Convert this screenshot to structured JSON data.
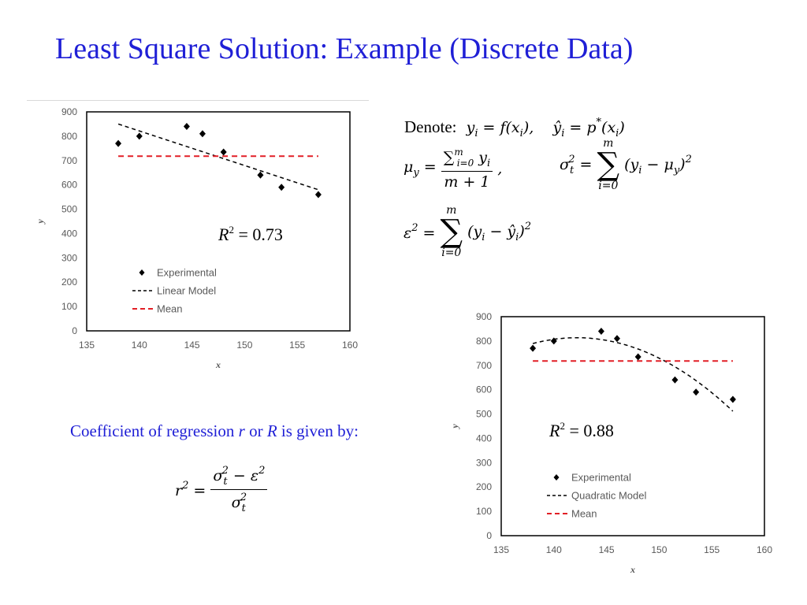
{
  "slide": {
    "title": "Least Square Solution: Example (Discrete Data)"
  },
  "colors": {
    "title": "#1f1fd6",
    "mean_line": "#e21f26",
    "model_line": "#000000"
  },
  "chart_data": [
    {
      "type": "scatter",
      "x": [
        138,
        140,
        144.5,
        146,
        148,
        151.5,
        153.5,
        157
      ],
      "series": [
        {
          "name": "Experimental",
          "style": "diamond-markers",
          "values": [
            770,
            800,
            840,
            810,
            735,
            640,
            590,
            560
          ]
        },
        {
          "name": "Linear Model",
          "style": "black-dashed",
          "points": [
            [
              138,
              850
            ],
            [
              157,
              580
            ]
          ]
        },
        {
          "name": "Mean",
          "style": "red-dashed",
          "points": [
            [
              138,
              718
            ],
            [
              157,
              718
            ]
          ]
        }
      ],
      "xlabel": "x",
      "ylabel": "y",
      "xlim": [
        135,
        160
      ],
      "ylim": [
        0,
        900
      ],
      "xticks": [
        "135",
        "140",
        "145",
        "150",
        "155",
        "160"
      ],
      "yticks": [
        "0",
        "100",
        "200",
        "300",
        "400",
        "500",
        "600",
        "700",
        "800",
        "900"
      ],
      "grid": false,
      "legend": "bottom-left",
      "annotation": {
        "prefix": "R",
        "exp": "2",
        "suffix": " = 0.73"
      }
    },
    {
      "type": "scatter",
      "x": [
        138,
        140,
        144.5,
        146,
        148,
        151.5,
        153.5,
        157
      ],
      "series": [
        {
          "name": "Experimental",
          "style": "diamond-markers",
          "values": [
            770,
            800,
            840,
            810,
            735,
            640,
            590,
            560
          ]
        },
        {
          "name": "Quadratic Model",
          "style": "black-dashed-curve",
          "coefficients": [
            -1.375,
            391,
            -26983
          ],
          "domain": [
            138,
            157
          ]
        },
        {
          "name": "Mean",
          "style": "red-dashed",
          "points": [
            [
              138,
              718
            ],
            [
              157,
              718
            ]
          ]
        }
      ],
      "xlabel": "x",
      "ylabel": "y",
      "xlim": [
        135,
        160
      ],
      "ylim": [
        0,
        900
      ],
      "xticks": [
        "135",
        "140",
        "145",
        "150",
        "155",
        "160"
      ],
      "yticks": [
        "0",
        "100",
        "200",
        "300",
        "400",
        "500",
        "600",
        "700",
        "800",
        "900"
      ],
      "grid": false,
      "legend": "bottom-left",
      "annotation": {
        "prefix": "R",
        "exp": "2",
        "suffix": " = 0.88"
      }
    }
  ],
  "formulas": {
    "denote_label": "Denote:",
    "def_y": "y",
    "def_y_sub": "i",
    "def_y_rhs": " = f(x",
    "def_y_rhs_sub": "i",
    "def_y_close": "),",
    "def_yhat": "ŷ",
    "def_yhat_sub": "i",
    "def_yhat_rhs": " = p",
    "def_yhat_star": "*",
    "def_yhat_rhs2": "(x",
    "def_yhat_rhs2_sub": "i",
    "def_yhat_close": ")",
    "mu": "μ",
    "mu_sub": "y",
    "eq": " = ",
    "sum_upper": "m",
    "sum_lower": "i=0",
    "sum_sign": "∑",
    "mu_num_term": "y",
    "mu_num_sub": "i",
    "mu_den": "m + 1",
    "comma": ",",
    "sigma": "σ",
    "sigma_sub": "t",
    "sq": "2",
    "sigma_body": "(y",
    "sigma_body_sub": "i",
    "sigma_body_mid": " − μ",
    "sigma_body_mid_sub": "y",
    "sigma_body_close": ")",
    "eps": "ε",
    "eps_body": "(y",
    "eps_body_sub": "i",
    "eps_body_mid": " − ŷ",
    "eps_body_mid_sub": "i",
    "eps_body_close": ")",
    "r": "r",
    "r_num_sigma": "σ",
    "r_num_sub": "t",
    "r_num_mid": " − ε",
    "r_den_sigma": "σ",
    "r_den_sub": "t"
  },
  "text": {
    "coef_prefix": "Coefficient of regression ",
    "coef_r": "r",
    "coef_or": " or ",
    "coef_R": "R",
    "coef_suffix": " is given by:"
  }
}
